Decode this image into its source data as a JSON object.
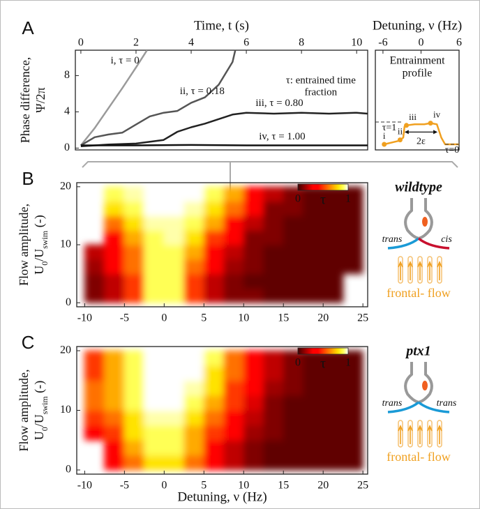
{
  "chart_data": [
    {
      "type": "line",
      "panel": "A",
      "xlabel": "Time, t (s)",
      "ylabel": [
        "Phase difference,",
        "Ψ/2π"
      ],
      "xlim": [
        -0.2,
        10.4
      ],
      "xticks": [
        0,
        2,
        4,
        6,
        8,
        10
      ],
      "ylim": [
        -0.2,
        10.8
      ],
      "yticks": [
        0,
        4,
        8
      ],
      "series": [
        {
          "name": "i, τ = 0",
          "color": "#9a9a9a",
          "label_x": 1.6,
          "label_y": 9.6,
          "x": [
            0,
            0.5,
            1,
            1.5,
            2,
            2.4
          ],
          "values": [
            0.3,
            2.2,
            4.4,
            6.6,
            8.9,
            10.8
          ]
        },
        {
          "name": "ii, τ = 0.18",
          "color": "#555555",
          "label_x": 4.4,
          "label_y": 6.2,
          "x": [
            0,
            0.5,
            1,
            1.5,
            2,
            2.5,
            3,
            3.5,
            4,
            4.5,
            5,
            5.5,
            5.6
          ],
          "values": [
            0.3,
            1.2,
            1.5,
            1.7,
            2.6,
            3.5,
            3.9,
            4.1,
            5.0,
            5.6,
            7.0,
            9.5,
            10.8
          ]
        },
        {
          "name": "iii, τ = 0.80",
          "color": "#222222",
          "label_x": 7.2,
          "label_y": 4.9,
          "x": [
            0,
            1,
            2,
            3,
            3.5,
            4,
            4.5,
            5,
            5.5,
            6,
            7,
            8,
            9,
            10,
            10.4
          ],
          "values": [
            0.2,
            0.4,
            0.5,
            0.9,
            1.8,
            2.3,
            2.7,
            3.2,
            3.7,
            3.9,
            3.8,
            3.9,
            3.8,
            3.9,
            3.8
          ]
        },
        {
          "name": "iv, τ = 1.00",
          "color": "#111111",
          "label_x": 7.3,
          "label_y": 1.2,
          "x": [
            0,
            2,
            4,
            6,
            8,
            10,
            10.4
          ],
          "values": [
            0.3,
            0.3,
            0.35,
            0.3,
            0.3,
            0.3,
            0.3
          ]
        }
      ],
      "note": {
        "lines": [
          "τ: entrained time",
          "fraction"
        ],
        "x": 8.7,
        "y": 7.4
      }
    },
    {
      "type": "line",
      "title": [
        "Entrainment",
        "profile"
      ],
      "xlabel": "Detuning, ν (Hz)",
      "xlim": [
        -7.2,
        6
      ],
      "xticks": [
        -6,
        0,
        6
      ],
      "ylim": [
        -0.25,
        4.22
      ],
      "series": [
        {
          "color": "#f0a020",
          "x": [
            -5.8,
            -3.6,
            -3.3,
            -2.8,
            -2.6,
            -2.3,
            -1,
            0.5,
            1.5,
            2.5,
            3.2,
            3.8,
            6
          ],
          "values": [
            0,
            0.15,
            0.2,
            0.3,
            0.8,
            0.85,
            0.9,
            0.9,
            0.95,
            0.9,
            0.3,
            0,
            0
          ]
        }
      ],
      "markers": [
        {
          "label": "i",
          "x": -5.8,
          "y": 0
        },
        {
          "label": "ii",
          "x": -3.3,
          "y": 0.2
        },
        {
          "label": "iii",
          "x": -2.3,
          "y": 0.85
        },
        {
          "label": "iv",
          "x": 1.5,
          "y": 0.95
        }
      ],
      "levels": [
        {
          "label": "τ=1",
          "value": 1,
          "x": [
            -7.2,
            -2.8
          ]
        },
        {
          "label": "τ=0",
          "value": 0,
          "x": [
            3.8,
            6
          ]
        }
      ],
      "arrow": {
        "label": "2ε",
        "from": -2.6,
        "to": 2.6,
        "y": 0.55
      }
    },
    {
      "type": "heatmap",
      "panel": "B",
      "ylabel": "Flow amplitude,",
      "ylabel_units": [
        "U",
        "0",
        "/U",
        "swim",
        " (-)"
      ],
      "xlim": [
        -11,
        25.6
      ],
      "xticks": [
        -10,
        -5,
        0,
        5,
        10,
        15,
        20,
        25
      ],
      "ylim": [
        -0.7,
        20.7
      ],
      "yticks": [
        0,
        10,
        20
      ],
      "x_edges": [
        -10,
        -7.5,
        -5,
        -2.5,
        0,
        2.5,
        5,
        7.5,
        10,
        12.5,
        15,
        17.5,
        20,
        22.5,
        25
      ],
      "y_edges": [
        0,
        2.5,
        5,
        7.5,
        10,
        12.5,
        15,
        17.5,
        20
      ],
      "z": [
        [
          0.1,
          0.2,
          0.5,
          0.9,
          0.9,
          0.5,
          0.2,
          0.1,
          0.1,
          0.05,
          0.05,
          0.05,
          0.05,
          null
        ],
        [
          0.1,
          0.2,
          0.5,
          0.9,
          0.9,
          0.5,
          0.2,
          0.1,
          0.05,
          0.05,
          0.05,
          0.05,
          0.05,
          null
        ],
        [
          0.15,
          0.3,
          0.6,
          0.9,
          0.9,
          0.6,
          0.3,
          0.15,
          0.1,
          0.05,
          0.05,
          0.05,
          0.05,
          0.05
        ],
        [
          0.2,
          0.3,
          0.6,
          0.9,
          0.9,
          0.7,
          0.4,
          0.2,
          0.1,
          0.05,
          0.05,
          0.05,
          0.05,
          0.05
        ],
        [
          null,
          0.4,
          0.7,
          0.9,
          0.95,
          0.8,
          0.5,
          0.3,
          0.1,
          0.1,
          0.05,
          0.05,
          0.05,
          0.05
        ],
        [
          null,
          0.6,
          0.8,
          0.95,
          0.95,
          0.9,
          0.7,
          0.4,
          0.2,
          0.1,
          0.05,
          0.05,
          0.05,
          0.05
        ],
        [
          null,
          0.8,
          0.9,
          1,
          1,
          0.95,
          0.8,
          0.6,
          0.3,
          0.1,
          0.1,
          0.05,
          0.05,
          0.05
        ],
        [
          null,
          0.9,
          0.95,
          1,
          1,
          1,
          0.9,
          0.7,
          0.4,
          0.2,
          0.1,
          0.05,
          0.05,
          0.05
        ]
      ],
      "colormap": "hot",
      "clim": [
        0,
        1
      ],
      "cticks": [
        0,
        1
      ],
      "clabel": "τ",
      "genotype": "wildtype",
      "strands": [
        "trans",
        "cis"
      ],
      "strand_colors": [
        "#1a9ad6",
        "#c8102e"
      ],
      "flow_label": "frontal- flow"
    },
    {
      "type": "heatmap",
      "panel": "C",
      "xlabel": "Detuning, ν (Hz)",
      "ylabel": "Flow amplitude,",
      "ylabel_units": [
        "U",
        "0",
        "/U",
        "swim",
        " (-)"
      ],
      "xlim": [
        -11,
        25.6
      ],
      "xticks": [
        -10,
        -5,
        0,
        5,
        10,
        15,
        20,
        25
      ],
      "ylim": [
        -0.7,
        20.7
      ],
      "yticks": [
        0,
        10,
        20
      ],
      "x_edges": [
        -10,
        -7.5,
        -5,
        -2.5,
        0,
        2.5,
        5,
        7.5,
        10,
        12.5,
        15,
        17.5,
        20,
        22.5,
        25
      ],
      "y_edges": [
        0,
        2.5,
        5,
        7.5,
        10,
        12.5,
        15,
        17.5,
        20
      ],
      "z": [
        [
          null,
          0.3,
          0.6,
          0.8,
          0.8,
          0.6,
          0.4,
          0.2,
          0.1,
          0.05,
          0.05,
          0.05,
          0.05,
          0.05
        ],
        [
          null,
          0.4,
          0.7,
          0.9,
          0.9,
          0.7,
          0.4,
          0.2,
          0.1,
          0.05,
          0.05,
          0.05,
          0.05,
          0.05
        ],
        [
          0.4,
          0.5,
          0.8,
          0.9,
          0.9,
          0.7,
          0.5,
          0.3,
          0.15,
          0.1,
          0.05,
          0.05,
          0.05,
          0.05
        ],
        [
          0.5,
          0.6,
          0.8,
          0.95,
          0.95,
          0.8,
          0.6,
          0.4,
          0.2,
          0.1,
          0.05,
          0.05,
          0.05,
          0.05
        ],
        [
          0.6,
          0.7,
          0.9,
          1,
          1,
          0.9,
          0.7,
          0.5,
          0.25,
          0.1,
          0.05,
          0.05,
          0.05,
          0.05
        ],
        [
          0.6,
          0.7,
          0.9,
          1,
          1,
          0.95,
          0.8,
          0.5,
          0.3,
          0.15,
          0.1,
          0.05,
          0.05,
          0.05
        ],
        [
          0.5,
          0.7,
          0.9,
          1,
          1,
          1,
          0.8,
          0.6,
          0.3,
          0.2,
          0.1,
          0.05,
          0.05,
          0.05
        ],
        [
          0.5,
          0.7,
          0.9,
          1,
          1,
          1,
          0.9,
          0.6,
          0.4,
          0.2,
          0.1,
          0.05,
          0.05,
          0.05
        ]
      ],
      "colormap": "hot",
      "clim": [
        0,
        1
      ],
      "cticks": [
        0,
        1
      ],
      "clabel": "τ",
      "genotype": "ptx1",
      "strands": [
        "trans",
        "trans"
      ],
      "strand_colors": [
        "#1a9ad6",
        "#1a9ad6"
      ],
      "flow_label": "frontal- flow"
    }
  ]
}
